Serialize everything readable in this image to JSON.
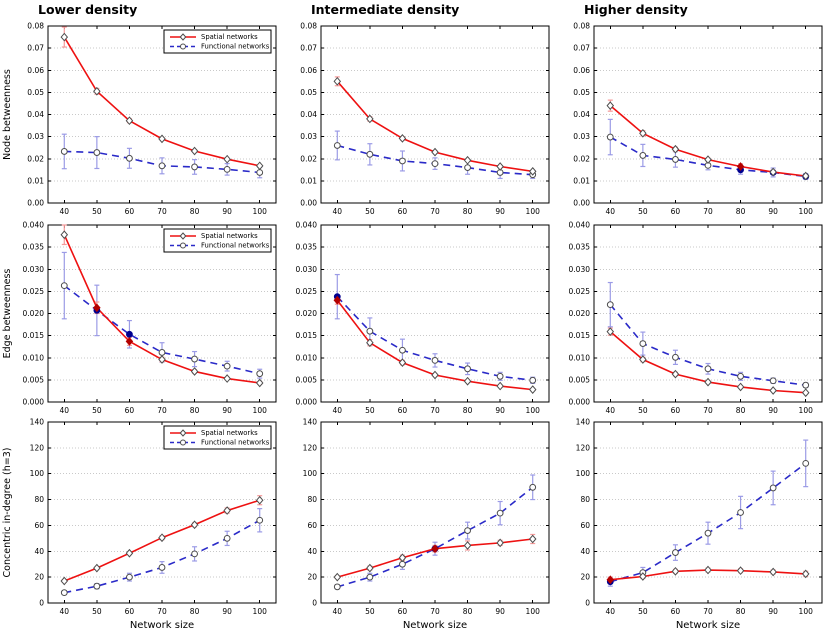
{
  "figure": {
    "column_titles": [
      "Lower density",
      "Intermediate density",
      "Higher density"
    ],
    "row_labels": [
      "Node betweenness",
      "Edge betweenness",
      "Concentric in-degree (h=3)"
    ],
    "x_axis_label": "Network size",
    "grid_style": "horizontal-dotted",
    "legend": {
      "position": "top-right-inside",
      "shown_in_column": 1,
      "series": [
        {
          "label": "Spatial networks",
          "line": "solid",
          "marker": "diamond"
        },
        {
          "label": "Functional networks",
          "line": "dashed",
          "marker": "circle"
        }
      ]
    },
    "colors": {
      "spatial": "#ee1111",
      "spatial_err": "#f59a9a",
      "spatial_filled": "#b30000",
      "functional": "#2a2ac8",
      "functional_err": "#9b9be6",
      "functional_filled": "#00008f",
      "marker_edge": "#4d4d4d",
      "grid": "#c9c9c9",
      "axis": "#000000",
      "background": "#ffffff"
    }
  },
  "chart_data": [
    {
      "type": "line",
      "title": "Lower density",
      "ylabel": "Node betweenness",
      "xlabel": "",
      "x": [
        40,
        50,
        60,
        70,
        80,
        90,
        100
      ],
      "xlim": [
        35,
        105
      ],
      "ylim": [
        0,
        0.08
      ],
      "ystep": 0.01,
      "ydecimals": 2,
      "legend": true,
      "series": [
        {
          "name": "Spatial networks",
          "key": "spatial",
          "values": [
            0.075,
            0.0505,
            0.0372,
            0.029,
            0.0235,
            0.0198,
            0.0168
          ],
          "err": [
            0.0045,
            0.0013,
            0.0009,
            0.0006,
            0.0005,
            0.0005,
            0.0004
          ],
          "filled": []
        },
        {
          "name": "Functional networks",
          "key": "functional",
          "values": [
            0.0233,
            0.0228,
            0.0202,
            0.0168,
            0.0163,
            0.0152,
            0.0138
          ],
          "err": [
            0.0078,
            0.0072,
            0.0045,
            0.0036,
            0.0033,
            0.0026,
            0.0024
          ],
          "filled": []
        }
      ]
    },
    {
      "type": "line",
      "title": "Intermediate density",
      "ylabel": "",
      "xlabel": "",
      "x": [
        40,
        50,
        60,
        70,
        80,
        90,
        100
      ],
      "xlim": [
        35,
        105
      ],
      "ylim": [
        0,
        0.08
      ],
      "ystep": 0.01,
      "ydecimals": 2,
      "legend": false,
      "series": [
        {
          "name": "Spatial networks",
          "key": "spatial",
          "values": [
            0.055,
            0.038,
            0.0292,
            0.023,
            0.0193,
            0.0165,
            0.0143
          ],
          "err": [
            0.002,
            0.001,
            0.0008,
            0.0006,
            0.0005,
            0.0004,
            0.0004
          ],
          "filled": []
        },
        {
          "name": "Functional networks",
          "key": "functional",
          "values": [
            0.026,
            0.022,
            0.019,
            0.0178,
            0.016,
            0.0138,
            0.0128
          ],
          "err": [
            0.0065,
            0.0048,
            0.0045,
            0.0026,
            0.003,
            0.0027,
            0.0017
          ],
          "filled": []
        }
      ]
    },
    {
      "type": "line",
      "title": "Higher density",
      "ylabel": "",
      "xlabel": "",
      "x": [
        40,
        50,
        60,
        70,
        80,
        90,
        100
      ],
      "xlim": [
        35,
        105
      ],
      "ylim": [
        0,
        0.08
      ],
      "ystep": 0.01,
      "ydecimals": 2,
      "legend": false,
      "series": [
        {
          "name": "Spatial networks",
          "key": "spatial",
          "values": [
            0.044,
            0.0315,
            0.0243,
            0.0196,
            0.0165,
            0.014,
            0.0122
          ],
          "err": [
            0.0025,
            0.0012,
            0.0009,
            0.0007,
            0.0012,
            0.0008,
            0.0006
          ],
          "filled": [
            4
          ]
        },
        {
          "name": "Functional networks",
          "key": "functional",
          "values": [
            0.0298,
            0.0215,
            0.0197,
            0.017,
            0.015,
            0.0138,
            0.012
          ],
          "err": [
            0.008,
            0.005,
            0.0035,
            0.002,
            0.002,
            0.002,
            0.0013
          ],
          "filled": [
            4,
            5,
            6
          ]
        }
      ]
    },
    {
      "type": "line",
      "title": "",
      "ylabel": "Edge betweenness",
      "xlabel": "",
      "x": [
        40,
        50,
        60,
        70,
        80,
        90,
        100
      ],
      "xlim": [
        35,
        105
      ],
      "ylim": [
        0,
        0.04
      ],
      "ystep": 0.005,
      "ydecimals": 3,
      "legend": true,
      "series": [
        {
          "name": "Spatial networks",
          "key": "spatial",
          "values": [
            0.0378,
            0.0213,
            0.0137,
            0.0096,
            0.0069,
            0.0053,
            0.0043
          ],
          "err": [
            0.0022,
            0.0013,
            0.0009,
            0.0005,
            0.0004,
            0.0003,
            0.0003
          ],
          "filled": [
            1,
            2
          ]
        },
        {
          "name": "Functional networks",
          "key": "functional",
          "values": [
            0.0263,
            0.0207,
            0.0153,
            0.0112,
            0.0097,
            0.0081,
            0.0064
          ],
          "err": [
            0.0075,
            0.0057,
            0.0031,
            0.0022,
            0.0017,
            0.0011,
            0.001
          ],
          "filled": [
            1,
            2
          ]
        }
      ]
    },
    {
      "type": "line",
      "title": "",
      "ylabel": "",
      "xlabel": "",
      "x": [
        40,
        50,
        60,
        70,
        80,
        90,
        100
      ],
      "xlim": [
        35,
        105
      ],
      "ylim": [
        0,
        0.04
      ],
      "ystep": 0.005,
      "ydecimals": 3,
      "legend": false,
      "series": [
        {
          "name": "Spatial networks",
          "key": "spatial",
          "values": [
            0.023,
            0.0134,
            0.0089,
            0.0061,
            0.0047,
            0.0036,
            0.0028
          ],
          "err": [
            0.0009,
            0.0007,
            0.0005,
            0.0003,
            0.0003,
            0.0002,
            0.0002
          ],
          "filled": [
            0
          ]
        },
        {
          "name": "Functional networks",
          "key": "functional",
          "values": [
            0.0238,
            0.016,
            0.0117,
            0.0094,
            0.0075,
            0.0058,
            0.0049
          ],
          "err": [
            0.005,
            0.003,
            0.0025,
            0.0015,
            0.0013,
            0.0009,
            0.0007
          ],
          "filled": [
            0
          ]
        }
      ]
    },
    {
      "type": "line",
      "title": "",
      "ylabel": "",
      "xlabel": "",
      "x": [
        40,
        50,
        60,
        70,
        80,
        90,
        100
      ],
      "xlim": [
        35,
        105
      ],
      "ylim": [
        0,
        0.04
      ],
      "ystep": 0.005,
      "ydecimals": 3,
      "legend": false,
      "series": [
        {
          "name": "Spatial networks",
          "key": "spatial",
          "values": [
            0.0159,
            0.0096,
            0.0063,
            0.0045,
            0.0034,
            0.0026,
            0.0021
          ],
          "err": [
            0.0008,
            0.0005,
            0.0004,
            0.0003,
            0.0002,
            0.0002,
            0.0002
          ],
          "filled": []
        },
        {
          "name": "Functional networks",
          "key": "functional",
          "values": [
            0.022,
            0.0132,
            0.0101,
            0.0075,
            0.0058,
            0.0048,
            0.0038
          ],
          "err": [
            0.005,
            0.0026,
            0.0016,
            0.0012,
            0.0009,
            0.0006,
            0.0005
          ],
          "filled": []
        }
      ]
    },
    {
      "type": "line",
      "title": "",
      "ylabel": "Concentric in-degree (h=3)",
      "xlabel": "Network size",
      "x": [
        40,
        50,
        60,
        70,
        80,
        90,
        100
      ],
      "xlim": [
        35,
        105
      ],
      "ylim": [
        0,
        140
      ],
      "ystep": 20,
      "ydecimals": 0,
      "legend": true,
      "series": [
        {
          "name": "Spatial networks",
          "key": "spatial",
          "values": [
            17,
            27,
            38.5,
            50.5,
            60.5,
            71.5,
            79.5
          ],
          "err": [
            1,
            1,
            1,
            1.5,
            1.5,
            2,
            3.5
          ],
          "filled": []
        },
        {
          "name": "Functional networks",
          "key": "functional",
          "values": [
            8,
            13,
            20,
            27.5,
            38,
            50,
            64
          ],
          "err": [
            1.5,
            2,
            3,
            4.5,
            5.5,
            5.5,
            9
          ],
          "filled": []
        }
      ]
    },
    {
      "type": "line",
      "title": "",
      "ylabel": "",
      "xlabel": "Network size",
      "x": [
        40,
        50,
        60,
        70,
        80,
        90,
        100
      ],
      "xlim": [
        35,
        105
      ],
      "ylim": [
        0,
        140
      ],
      "ystep": 20,
      "ydecimals": 0,
      "legend": false,
      "series": [
        {
          "name": "Spatial networks",
          "key": "spatial",
          "values": [
            20,
            27,
            35,
            42,
            44.5,
            46.5,
            49.5
          ],
          "err": [
            1,
            1.5,
            2,
            2.5,
            3.5,
            2,
            3.5
          ],
          "filled": [
            3
          ]
        },
        {
          "name": "Functional networks",
          "key": "functional",
          "values": [
            12.5,
            20,
            30,
            42,
            56,
            69.5,
            89.5
          ],
          "err": [
            1.5,
            3,
            4,
            5,
            6.5,
            9,
            9.5
          ],
          "filled": [
            3
          ]
        }
      ]
    },
    {
      "type": "line",
      "title": "",
      "ylabel": "",
      "xlabel": "Network size",
      "x": [
        40,
        50,
        60,
        70,
        80,
        90,
        100
      ],
      "xlim": [
        35,
        105
      ],
      "ylim": [
        0,
        140
      ],
      "ystep": 20,
      "ydecimals": 0,
      "legend": false,
      "series": [
        {
          "name": "Spatial networks",
          "key": "spatial",
          "values": [
            18,
            20.5,
            24.5,
            25.5,
            25,
            24,
            22.5
          ],
          "err": [
            2,
            1.5,
            1.5,
            1.5,
            1.5,
            1.5,
            2
          ],
          "filled": [
            0
          ]
        },
        {
          "name": "Functional networks",
          "key": "functional",
          "values": [
            16.5,
            23.5,
            39,
            54,
            70,
            89,
            108
          ],
          "err": [
            3.5,
            4,
            6,
            8.5,
            12.5,
            13,
            18
          ],
          "filled": [
            0
          ]
        }
      ]
    }
  ]
}
